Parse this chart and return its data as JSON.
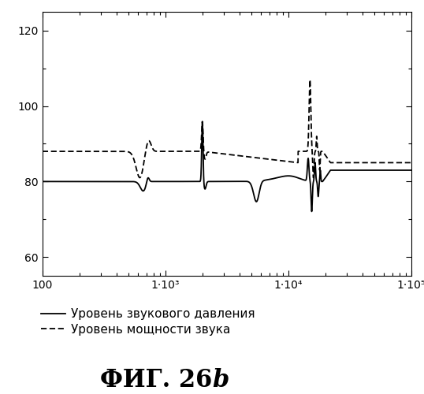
{
  "title": "ФИГ. 26b",
  "xlim": [
    100,
    100000
  ],
  "ylim": [
    55,
    125
  ],
  "yticks": [
    60,
    80,
    100,
    120
  ],
  "xtick_positions": [
    100,
    1000,
    10000,
    100000
  ],
  "xtick_labels": [
    "100",
    "1·10³",
    "1·10⁴",
    "1·10⁵"
  ],
  "legend_solid": "Уровень звукового давления",
  "legend_dashed": "Уровень мощности звука",
  "line_color": "#000000",
  "background_color": "#ffffff"
}
